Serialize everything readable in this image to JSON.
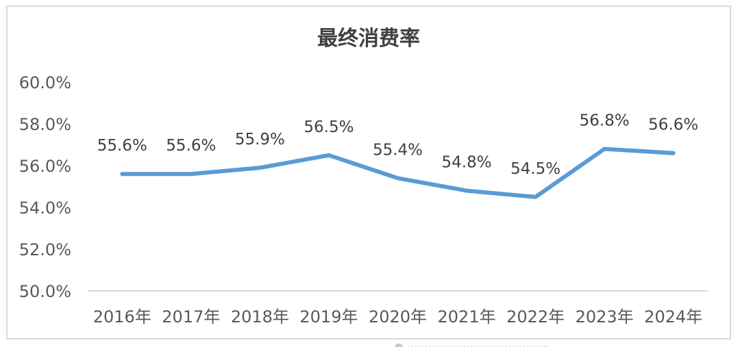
{
  "chart_data": {
    "type": "line",
    "title": "最终消费率",
    "categories": [
      "2016年",
      "2017年",
      "2018年",
      "2019年",
      "2020年",
      "2021年",
      "2022年",
      "2023年",
      "2024年"
    ],
    "series": [
      {
        "values": [
          55.6,
          55.6,
          55.9,
          56.5,
          55.4,
          54.8,
          54.5,
          56.8,
          56.6
        ]
      }
    ],
    "data_labels": [
      "55.6%",
      "55.6%",
      "55.9%",
      "56.5%",
      "55.4%",
      "54.8%",
      "54.5%",
      "56.8%",
      "56.6%"
    ],
    "yticks": [
      "50.0%",
      "52.0%",
      "54.0%",
      "56.0%",
      "58.0%",
      "60.0%"
    ],
    "ylim": [
      50,
      60
    ],
    "xlabel": "",
    "ylabel": "",
    "grid": false,
    "line_color": "#5b9bd5"
  }
}
